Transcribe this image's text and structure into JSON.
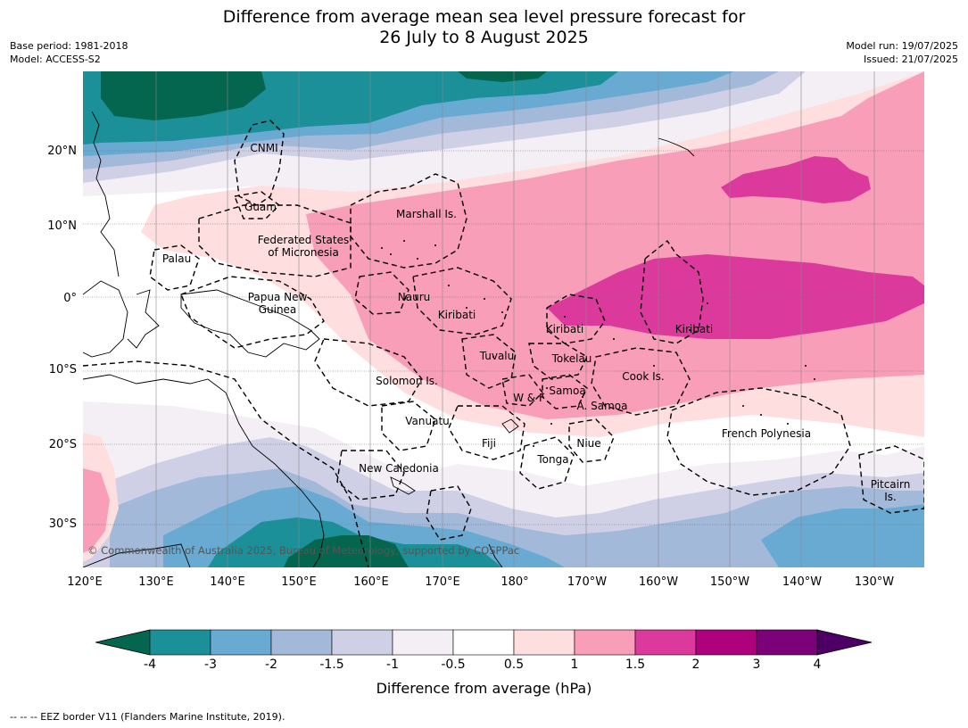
{
  "title_line1": "Difference from average mean sea level pressure forecast for",
  "title_line2": "26 July to 8 August 2025",
  "base_period": "Base period: 1981-2018",
  "model": "Model: ACCESS-S2",
  "model_run": "Model run: 19/07/2025",
  "issued": "Issued: 21/07/2025",
  "copyright": "© Commonwealth of Australia 2025, Bureau of Meteorology, supported by COSPPac",
  "colorbar_label": "Difference from average (hPa)",
  "footer": "--  --  -- EEZ border V11 (Flanders Marine Institute, 2019).",
  "lat_labels": [
    "20°N",
    "10°N",
    "0°",
    "10°S",
    "20°S",
    "30°S"
  ],
  "lon_labels": [
    "120°E",
    "130°E",
    "140°E",
    "150°E",
    "160°E",
    "170°E",
    "180°",
    "170°W",
    "160°W",
    "150°W",
    "140°W",
    "130°W"
  ],
  "colorbar_ticks": [
    "-4",
    "-3",
    "-2",
    "-1.5",
    "-1",
    "-0.5",
    "0.5",
    "1",
    "1.5",
    "2",
    "3",
    "4"
  ],
  "colorbar_colors": [
    "#04664e",
    "#1b9099",
    "#68aad2",
    "#a3b9d9",
    "#cfd0e6",
    "#f3eff5",
    "#ffffff",
    "#fedede",
    "#f89eb8",
    "#db3a9c",
    "#ad027b",
    "#7a0177",
    "#4c0066"
  ],
  "regions": [
    {
      "id": "cnmi",
      "label": "CNMI"
    },
    {
      "id": "guam",
      "label": "Guam"
    },
    {
      "id": "marshall",
      "label": "Marshall Is."
    },
    {
      "id": "fsm",
      "label": "Federated States\nof Micronesia"
    },
    {
      "id": "palau",
      "label": "Palau"
    },
    {
      "id": "png",
      "label": "Papua New\nGuinea"
    },
    {
      "id": "nauru",
      "label": "Nauru"
    },
    {
      "id": "kiribati-w",
      "label": "Kiribati"
    },
    {
      "id": "kiribati-c",
      "label": "Kiribati"
    },
    {
      "id": "kiribati-e",
      "label": "Kiribati"
    },
    {
      "id": "tuvalu",
      "label": "Tuvalu"
    },
    {
      "id": "tokelau",
      "label": "Tokelau"
    },
    {
      "id": "cook",
      "label": "Cook Is."
    },
    {
      "id": "solomon",
      "label": "Solomon Is."
    },
    {
      "id": "wf",
      "label": "W & F"
    },
    {
      "id": "samoa",
      "label": "Samoa"
    },
    {
      "id": "asamoa",
      "label": "A. Samoa"
    },
    {
      "id": "vanuatu",
      "label": "Vanuatu"
    },
    {
      "id": "fiji",
      "label": "Fiji"
    },
    {
      "id": "niue",
      "label": "Niue"
    },
    {
      "id": "tonga",
      "label": "Tonga"
    },
    {
      "id": "french-polynesia",
      "label": "French Polynesia"
    },
    {
      "id": "new-caledonia",
      "label": "New Caledonia"
    },
    {
      "id": "pitcairn",
      "label": "Pitcairn\nIs."
    }
  ]
}
